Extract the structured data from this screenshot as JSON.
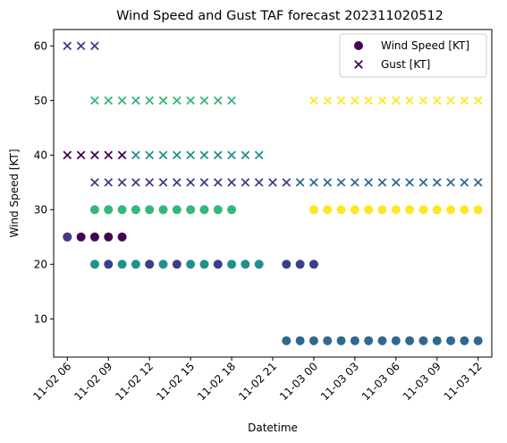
{
  "chart_data": {
    "type": "scatter",
    "title": "Wind Speed and Gust TAF forecast 202311020512",
    "xlabel": "Datetime",
    "ylabel": "Wind Speed [KT]",
    "x_unit": "hour",
    "xlim": [
      "2023-11-02 05:00",
      "2023-11-03 13:00"
    ],
    "ylim": [
      3,
      63
    ],
    "x_ticks": [
      {
        "label": "11-02 06",
        "x": "2023-11-02 06:00"
      },
      {
        "label": "11-02 09",
        "x": "2023-11-02 09:00"
      },
      {
        "label": "11-02 12",
        "x": "2023-11-02 12:00"
      },
      {
        "label": "11-02 15",
        "x": "2023-11-02 15:00"
      },
      {
        "label": "11-02 18",
        "x": "2023-11-02 18:00"
      },
      {
        "label": "11-02 21",
        "x": "2023-11-02 21:00"
      },
      {
        "label": "11-03 00",
        "x": "2023-11-03 00:00"
      },
      {
        "label": "11-03 03",
        "x": "2023-11-03 03:00"
      },
      {
        "label": "11-03 06",
        "x": "2023-11-03 06:00"
      },
      {
        "label": "11-03 09",
        "x": "2023-11-03 09:00"
      },
      {
        "label": "11-03 12",
        "x": "2023-11-03 12:00"
      }
    ],
    "y_ticks": [
      10,
      20,
      30,
      40,
      50,
      60
    ],
    "grid": false,
    "legend": {
      "placement": "top-right",
      "entries": [
        {
          "label": "Wind Speed [KT]",
          "marker": "circle",
          "color": "#440154"
        },
        {
          "label": "Gust [KT]",
          "marker": "x",
          "color": "#440154"
        }
      ]
    },
    "series": [
      {
        "marker": "circle",
        "color": "#440154",
        "x": [
          "2023-11-02 06:00",
          "2023-11-02 07:00",
          "2023-11-02 08:00",
          "2023-11-02 09:00",
          "2023-11-02 10:00"
        ],
        "y": [
          25,
          25,
          25,
          25,
          25
        ]
      },
      {
        "marker": "x",
        "color": "#440154",
        "x": [
          "2023-11-02 06:00",
          "2023-11-02 07:00",
          "2023-11-02 08:00",
          "2023-11-02 09:00",
          "2023-11-02 10:00"
        ],
        "y": [
          40,
          40,
          40,
          40,
          40
        ]
      },
      {
        "marker": "circle",
        "color": "#443a83",
        "x": [
          "2023-11-02 06:00"
        ],
        "y": [
          25
        ]
      },
      {
        "marker": "x",
        "color": "#443a83",
        "x": [
          "2023-11-02 06:00",
          "2023-11-02 07:00",
          "2023-11-02 08:00"
        ],
        "y": [
          60,
          60,
          60
        ]
      },
      {
        "marker": "circle",
        "color": "#3b3f89",
        "x": [
          "2023-11-02 09:00",
          "2023-11-02 12:00",
          "2023-11-02 14:00",
          "2023-11-02 17:00",
          "2023-11-02 22:00",
          "2023-11-02 23:00",
          "2023-11-03 00:00"
        ],
        "y": [
          20,
          20,
          20,
          20,
          20,
          20,
          20
        ]
      },
      {
        "marker": "x",
        "color": "#3b3f89",
        "x": [
          "2023-11-02 08:00",
          "2023-11-02 09:00",
          "2023-11-02 10:00",
          "2023-11-02 11:00",
          "2023-11-02 12:00",
          "2023-11-02 13:00",
          "2023-11-02 14:00",
          "2023-11-02 15:00",
          "2023-11-02 16:00",
          "2023-11-02 17:00",
          "2023-11-02 18:00",
          "2023-11-02 19:00",
          "2023-11-02 20:00",
          "2023-11-02 21:00",
          "2023-11-02 22:00"
        ],
        "y": [
          35,
          35,
          35,
          35,
          35,
          35,
          35,
          35,
          35,
          35,
          35,
          35,
          35,
          35,
          35
        ]
      },
      {
        "marker": "circle",
        "color": "#21908d",
        "x": [
          "2023-11-02 08:00",
          "2023-11-02 10:00",
          "2023-11-02 11:00",
          "2023-11-02 13:00",
          "2023-11-02 15:00",
          "2023-11-02 16:00",
          "2023-11-02 18:00",
          "2023-11-02 19:00",
          "2023-11-02 20:00"
        ],
        "y": [
          20,
          20,
          20,
          20,
          20,
          20,
          20,
          20,
          20
        ]
      },
      {
        "marker": "x",
        "color": "#21908d",
        "x": [
          "2023-11-02 11:00",
          "2023-11-02 12:00",
          "2023-11-02 13:00",
          "2023-11-02 14:00",
          "2023-11-02 15:00",
          "2023-11-02 16:00",
          "2023-11-02 17:00",
          "2023-11-02 18:00",
          "2023-11-02 19:00",
          "2023-11-02 20:00"
        ],
        "y": [
          40,
          40,
          40,
          40,
          40,
          40,
          40,
          40,
          40,
          40
        ]
      },
      {
        "marker": "circle",
        "color": "#35b779",
        "x": [
          "2023-11-02 08:00",
          "2023-11-02 09:00",
          "2023-11-02 10:00",
          "2023-11-02 11:00",
          "2023-11-02 12:00",
          "2023-11-02 13:00",
          "2023-11-02 14:00",
          "2023-11-02 15:00",
          "2023-11-02 16:00",
          "2023-11-02 17:00",
          "2023-11-02 18:00"
        ],
        "y": [
          30,
          30,
          30,
          30,
          30,
          30,
          30,
          30,
          30,
          30,
          30
        ]
      },
      {
        "marker": "x",
        "color": "#35b779",
        "x": [
          "2023-11-02 08:00",
          "2023-11-02 09:00",
          "2023-11-02 10:00",
          "2023-11-02 11:00",
          "2023-11-02 12:00",
          "2023-11-02 13:00",
          "2023-11-02 14:00",
          "2023-11-02 15:00",
          "2023-11-02 16:00",
          "2023-11-02 17:00",
          "2023-11-02 18:00"
        ],
        "y": [
          50,
          50,
          50,
          50,
          50,
          50,
          50,
          50,
          50,
          50,
          50
        ]
      },
      {
        "marker": "circle",
        "color": "#31688e",
        "x": [
          "2023-11-02 22:00",
          "2023-11-02 23:00",
          "2023-11-03 00:00",
          "2023-11-03 01:00",
          "2023-11-03 02:00",
          "2023-11-03 03:00",
          "2023-11-03 04:00",
          "2023-11-03 05:00",
          "2023-11-03 06:00",
          "2023-11-03 07:00",
          "2023-11-03 08:00",
          "2023-11-03 09:00",
          "2023-11-03 10:00",
          "2023-11-03 11:00",
          "2023-11-03 12:00"
        ],
        "y": [
          6,
          6,
          6,
          6,
          6,
          6,
          6,
          6,
          6,
          6,
          6,
          6,
          6,
          6,
          6
        ]
      },
      {
        "marker": "x",
        "color": "#31688e",
        "x": [
          "2023-11-02 23:00",
          "2023-11-03 00:00",
          "2023-11-03 01:00",
          "2023-11-03 02:00",
          "2023-11-03 03:00",
          "2023-11-03 04:00",
          "2023-11-03 05:00",
          "2023-11-03 06:00",
          "2023-11-03 07:00",
          "2023-11-03 08:00",
          "2023-11-03 09:00",
          "2023-11-03 10:00",
          "2023-11-03 11:00",
          "2023-11-03 12:00"
        ],
        "y": [
          35,
          35,
          35,
          35,
          35,
          35,
          35,
          35,
          35,
          35,
          35,
          35,
          35,
          35
        ]
      },
      {
        "marker": "circle",
        "color": "#fde725",
        "x": [
          "2023-11-03 00:00",
          "2023-11-03 01:00",
          "2023-11-03 02:00",
          "2023-11-03 03:00",
          "2023-11-03 04:00",
          "2023-11-03 05:00",
          "2023-11-03 06:00",
          "2023-11-03 07:00",
          "2023-11-03 08:00",
          "2023-11-03 09:00",
          "2023-11-03 10:00",
          "2023-11-03 11:00",
          "2023-11-03 12:00"
        ],
        "y": [
          30,
          30,
          30,
          30,
          30,
          30,
          30,
          30,
          30,
          30,
          30,
          30,
          30
        ]
      },
      {
        "marker": "x",
        "color": "#fde725",
        "x": [
          "2023-11-03 00:00",
          "2023-11-03 01:00",
          "2023-11-03 02:00",
          "2023-11-03 03:00",
          "2023-11-03 04:00",
          "2023-11-03 05:00",
          "2023-11-03 06:00",
          "2023-11-03 07:00",
          "2023-11-03 08:00",
          "2023-11-03 09:00",
          "2023-11-03 10:00",
          "2023-11-03 11:00",
          "2023-11-03 12:00"
        ],
        "y": [
          50,
          50,
          50,
          50,
          50,
          50,
          50,
          50,
          50,
          50,
          50,
          50,
          50
        ]
      }
    ]
  }
}
